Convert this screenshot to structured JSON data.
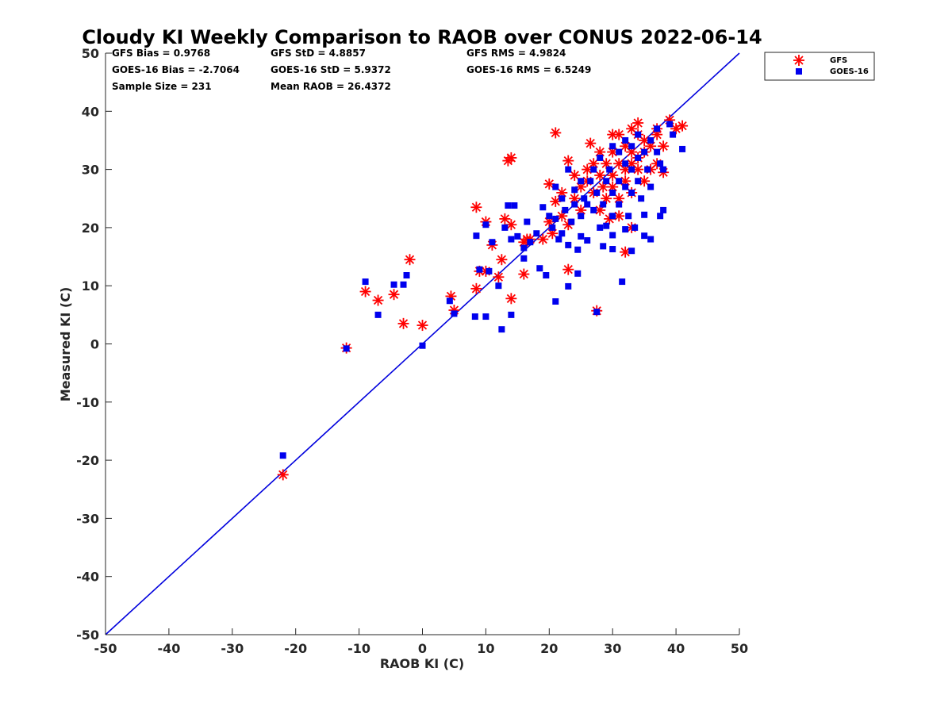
{
  "chart_data": {
    "type": "scatter",
    "title": "Cloudy KI Weekly Comparison to RAOB over CONUS 2022-06-14",
    "xlabel": "RAOB KI (C)",
    "ylabel": "Measured KI (C)",
    "xlim": [
      -50,
      50
    ],
    "ylim": [
      -50,
      50
    ],
    "x_ticks": [
      "-50",
      "-40",
      "-30",
      "-20",
      "-10",
      "0",
      "10",
      "20",
      "30",
      "40",
      "50"
    ],
    "y_ticks": [
      "50",
      "40",
      "30",
      "20",
      "10",
      "0",
      "-10",
      "-20",
      "-30",
      "-40",
      "-50"
    ],
    "grid": false,
    "legend_position": "outside-top-right",
    "reference_line": {
      "x": [
        -50,
        50
      ],
      "y": [
        -50,
        50
      ],
      "color": "#0000dd"
    },
    "stats": [
      [
        "GFS Bias = 0.9768",
        "GFS StD = 4.8857",
        "GFS RMS = 4.9824"
      ],
      [
        "GOES-16 Bias = -2.7064",
        "GOES-16 StD = 5.9372",
        "GOES-16 RMS = 6.5249"
      ],
      [
        "Sample Size = 231",
        "Mean RAOB = 26.4372"
      ]
    ],
    "series": [
      {
        "name": "GFS",
        "marker": "asterisk",
        "color": "#ff0000",
        "points": [
          [
            -22,
            -22.5
          ],
          [
            -12,
            -0.7
          ],
          [
            -9,
            9
          ],
          [
            -7,
            7.5
          ],
          [
            -4.5,
            8.5
          ],
          [
            -3,
            3.5
          ],
          [
            -2,
            14.5
          ],
          [
            0,
            3.2
          ],
          [
            4.5,
            8.2
          ],
          [
            5,
            5.8
          ],
          [
            8.5,
            23.5
          ],
          [
            8.5,
            9.5
          ],
          [
            9,
            12.5
          ],
          [
            10,
            12.5
          ],
          [
            10,
            21
          ],
          [
            11,
            17
          ],
          [
            12,
            11.5
          ],
          [
            12.5,
            14.5
          ],
          [
            13,
            21.5
          ],
          [
            13.5,
            31.5
          ],
          [
            14,
            32
          ],
          [
            14,
            7.8
          ],
          [
            14,
            20.5
          ],
          [
            16,
            17.5
          ],
          [
            16,
            12
          ],
          [
            16.5,
            18
          ],
          [
            17,
            18
          ],
          [
            19,
            18
          ],
          [
            20,
            21
          ],
          [
            20,
            27.5
          ],
          [
            20.5,
            19
          ],
          [
            21,
            36.3
          ],
          [
            21,
            24.5
          ],
          [
            22,
            26
          ],
          [
            22,
            22
          ],
          [
            23,
            31.5
          ],
          [
            23,
            12.8
          ],
          [
            23,
            20.5
          ],
          [
            24,
            29
          ],
          [
            24,
            25
          ],
          [
            25,
            27
          ],
          [
            25,
            23
          ],
          [
            26,
            30
          ],
          [
            26,
            28
          ],
          [
            26.5,
            34.5
          ],
          [
            27,
            31
          ],
          [
            27,
            26
          ],
          [
            27.5,
            5.7
          ],
          [
            28,
            33
          ],
          [
            28,
            29
          ],
          [
            28,
            23
          ],
          [
            28.5,
            27
          ],
          [
            29,
            31
          ],
          [
            29,
            25
          ],
          [
            29.5,
            21.5
          ],
          [
            30,
            36
          ],
          [
            30,
            33
          ],
          [
            30,
            29
          ],
          [
            30,
            27
          ],
          [
            31,
            36
          ],
          [
            31,
            31
          ],
          [
            31,
            25
          ],
          [
            31,
            22
          ],
          [
            32,
            34
          ],
          [
            32,
            30
          ],
          [
            32,
            28
          ],
          [
            32,
            15.8
          ],
          [
            33,
            37
          ],
          [
            33,
            33
          ],
          [
            33,
            31
          ],
          [
            33,
            26
          ],
          [
            33,
            20
          ],
          [
            34,
            38
          ],
          [
            34,
            36
          ],
          [
            34,
            32
          ],
          [
            34,
            30
          ],
          [
            35,
            35
          ],
          [
            35,
            33
          ],
          [
            35,
            28
          ],
          [
            36,
            34
          ],
          [
            36,
            30
          ],
          [
            37,
            37
          ],
          [
            37,
            36
          ],
          [
            37,
            31
          ],
          [
            38,
            29.5
          ],
          [
            38,
            34
          ],
          [
            39,
            38.5
          ],
          [
            40,
            37
          ],
          [
            41,
            37.5
          ]
        ]
      },
      {
        "name": "GOES-16",
        "marker": "square",
        "color": "#0000ee",
        "points": [
          [
            -22,
            -19.2
          ],
          [
            -12,
            -0.8
          ],
          [
            -9,
            10.7
          ],
          [
            -7,
            5
          ],
          [
            -4.5,
            10.2
          ],
          [
            -3,
            10.2
          ],
          [
            -2.5,
            11.8
          ],
          [
            0,
            -0.3
          ],
          [
            4.3,
            7.4
          ],
          [
            5,
            5.2
          ],
          [
            8.3,
            4.7
          ],
          [
            8.5,
            18.6
          ],
          [
            9,
            12.8
          ],
          [
            10,
            4.7
          ],
          [
            10,
            20.5
          ],
          [
            10.5,
            12.5
          ],
          [
            11,
            17.5
          ],
          [
            12,
            10
          ],
          [
            12.5,
            2.5
          ],
          [
            13,
            20
          ],
          [
            13.5,
            23.8
          ],
          [
            14,
            5
          ],
          [
            14,
            18
          ],
          [
            14.5,
            23.8
          ],
          [
            15,
            18.5
          ],
          [
            16,
            14.7
          ],
          [
            16,
            16.5
          ],
          [
            16.5,
            21
          ],
          [
            17,
            17.5
          ],
          [
            18,
            19
          ],
          [
            18.5,
            13
          ],
          [
            19,
            23.5
          ],
          [
            19.5,
            11.8
          ],
          [
            20,
            22
          ],
          [
            20.5,
            20
          ],
          [
            21,
            7.3
          ],
          [
            21,
            21.5
          ],
          [
            21,
            27
          ],
          [
            21.5,
            18
          ],
          [
            22,
            25
          ],
          [
            22,
            19
          ],
          [
            22.5,
            23
          ],
          [
            23,
            30
          ],
          [
            23,
            17
          ],
          [
            23,
            9.9
          ],
          [
            23.5,
            21
          ],
          [
            24,
            24
          ],
          [
            24,
            26.5
          ],
          [
            24.5,
            12.1
          ],
          [
            24.5,
            16.2
          ],
          [
            25,
            22
          ],
          [
            25,
            28
          ],
          [
            25,
            18.5
          ],
          [
            25.5,
            25
          ],
          [
            26,
            24
          ],
          [
            26,
            17.8
          ],
          [
            26.5,
            28
          ],
          [
            27,
            30
          ],
          [
            27,
            23
          ],
          [
            27.5,
            5.5
          ],
          [
            27.5,
            26
          ],
          [
            28,
            32
          ],
          [
            28,
            20
          ],
          [
            28.5,
            24
          ],
          [
            28.5,
            16.8
          ],
          [
            29,
            28
          ],
          [
            29,
            20.3
          ],
          [
            29.5,
            30
          ],
          [
            30,
            34
          ],
          [
            30,
            26
          ],
          [
            30,
            22
          ],
          [
            30,
            18.7
          ],
          [
            30,
            16.3
          ],
          [
            31,
            33
          ],
          [
            31,
            28
          ],
          [
            31,
            24
          ],
          [
            31.5,
            10.7
          ],
          [
            32,
            35
          ],
          [
            32,
            31
          ],
          [
            32,
            27
          ],
          [
            32,
            19.7
          ],
          [
            32.5,
            22
          ],
          [
            33,
            34
          ],
          [
            33,
            30
          ],
          [
            33,
            26
          ],
          [
            33,
            16
          ],
          [
            33.5,
            20
          ],
          [
            34,
            36
          ],
          [
            34,
            32
          ],
          [
            34,
            28
          ],
          [
            34.5,
            25
          ],
          [
            35,
            33
          ],
          [
            35,
            18.6
          ],
          [
            35,
            22.2
          ],
          [
            35.5,
            30
          ],
          [
            36,
            35
          ],
          [
            36,
            27
          ],
          [
            36,
            18
          ],
          [
            37,
            37
          ],
          [
            37,
            33
          ],
          [
            37.5,
            31
          ],
          [
            37.5,
            22
          ],
          [
            38,
            30
          ],
          [
            38,
            23
          ],
          [
            39,
            37.8
          ],
          [
            39.5,
            36
          ],
          [
            41,
            33.5
          ]
        ]
      }
    ]
  }
}
